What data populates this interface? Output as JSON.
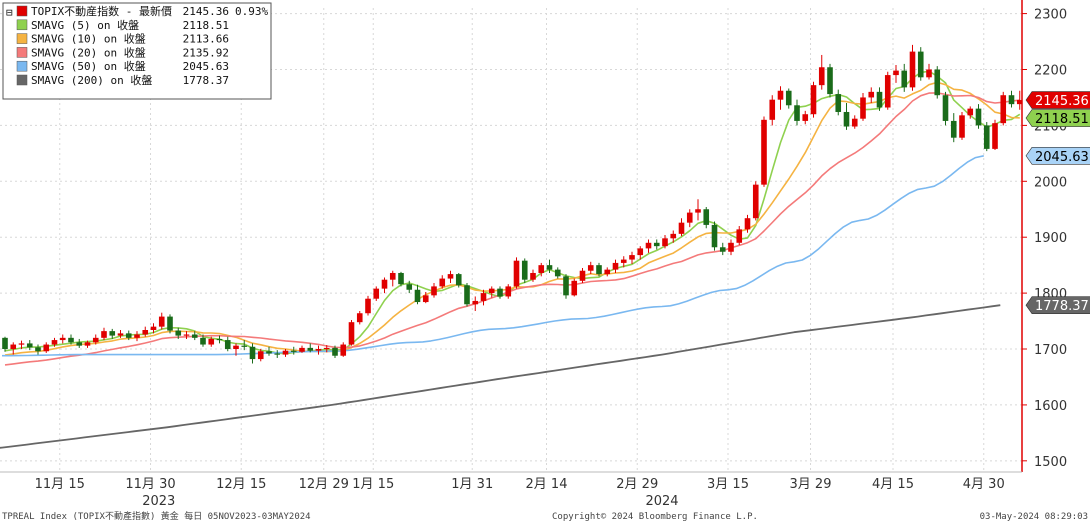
{
  "chart_data": {
    "type": "candlestick",
    "title": "",
    "ylim": [
      1480,
      2310
    ],
    "y_ticks": [
      1500,
      1600,
      1700,
      1800,
      1900,
      2000,
      2100,
      2200,
      2300
    ],
    "x_tick_labels": [
      {
        "label": "11月 15",
        "index": 7
      },
      {
        "label": "11月 30",
        "index": 18
      },
      {
        "label": "12月 15",
        "index": 29
      },
      {
        "label": "12月 29",
        "index": 39
      },
      {
        "label": "1月 15",
        "index": 45
      },
      {
        "label": "1月 31",
        "index": 57
      },
      {
        "label": "2月 14",
        "index": 66
      },
      {
        "label": "2月 29",
        "index": 77
      },
      {
        "label": "3月 15",
        "index": 88
      },
      {
        "label": "3月 29",
        "index": 98
      },
      {
        "label": "4月 15",
        "index": 108
      },
      {
        "label": "4月 30",
        "index": 119
      }
    ],
    "year_labels": [
      {
        "label": "2023",
        "index": 19
      },
      {
        "label": "2024",
        "index": 80
      }
    ],
    "legend": {
      "placement": "top-left",
      "collapse_icon": "⊟",
      "entries": [
        {
          "label": "TOPIX不動産指数 - 最新價",
          "value": "2145.36",
          "extra": "0.93%",
          "color": "#e00000",
          "marker": "box"
        },
        {
          "label": "SMAVG (5)  on 收盤",
          "value": "2118.51",
          "color": "#8fd14f",
          "marker": "box"
        },
        {
          "label": "SMAVG (10)  on 收盤",
          "value": "2113.66",
          "color": "#f5b342",
          "marker": "box"
        },
        {
          "label": "SMAVG (20)  on 收盤",
          "value": "2135.92",
          "color": "#f47a7a",
          "marker": "box"
        },
        {
          "label": "SMAVG (50)  on 收盤",
          "value": "2045.63",
          "color": "#7ab8f0",
          "marker": "box"
        },
        {
          "label": "SMAVG (200)  on 收盤",
          "value": "1778.37",
          "color": "#666666",
          "marker": "box"
        }
      ]
    },
    "price_tags": [
      {
        "value": "2145.36",
        "y": 2145.36,
        "bg": "#e00000",
        "fg": "#ffffff"
      },
      {
        "value": "2118.51",
        "y": 2118.51,
        "bg": "#8fd14f",
        "fg": "#000000"
      },
      {
        "value": "2045.63",
        "y": 2045.63,
        "bg": "#a9d3f7",
        "fg": "#000000"
      },
      {
        "value": "1778.37",
        "y": 1778.37,
        "bg": "#666666",
        "fg": "#ffffff"
      }
    ],
    "candles": [
      [
        1720,
        1722,
        1695,
        1700
      ],
      [
        1700,
        1712,
        1690,
        1708
      ],
      [
        1708,
        1715,
        1700,
        1710
      ],
      [
        1710,
        1716,
        1698,
        1703
      ],
      [
        1703,
        1708,
        1690,
        1696
      ],
      [
        1696,
        1712,
        1693,
        1708
      ],
      [
        1708,
        1720,
        1704,
        1716
      ],
      [
        1716,
        1726,
        1710,
        1720
      ],
      [
        1720,
        1726,
        1708,
        1712
      ],
      [
        1712,
        1718,
        1702,
        1706
      ],
      [
        1706,
        1715,
        1702,
        1712
      ],
      [
        1712,
        1726,
        1708,
        1720
      ],
      [
        1720,
        1738,
        1716,
        1732
      ],
      [
        1732,
        1736,
        1718,
        1724
      ],
      [
        1724,
        1734,
        1720,
        1728
      ],
      [
        1728,
        1733,
        1716,
        1720
      ],
      [
        1720,
        1732,
        1714,
        1726
      ],
      [
        1726,
        1740,
        1722,
        1734
      ],
      [
        1734,
        1746,
        1728,
        1740
      ],
      [
        1740,
        1765,
        1735,
        1758
      ],
      [
        1758,
        1762,
        1728,
        1733
      ],
      [
        1733,
        1738,
        1718,
        1724
      ],
      [
        1724,
        1732,
        1718,
        1726
      ],
      [
        1726,
        1732,
        1716,
        1720
      ],
      [
        1720,
        1726,
        1704,
        1708
      ],
      [
        1708,
        1722,
        1704,
        1718
      ],
      [
        1718,
        1724,
        1710,
        1716
      ],
      [
        1716,
        1722,
        1696,
        1700
      ],
      [
        1700,
        1710,
        1688,
        1706
      ],
      [
        1706,
        1716,
        1698,
        1704
      ],
      [
        1704,
        1710,
        1674,
        1682
      ],
      [
        1682,
        1700,
        1678,
        1696
      ],
      [
        1696,
        1704,
        1688,
        1692
      ],
      [
        1692,
        1698,
        1684,
        1690
      ],
      [
        1690,
        1700,
        1686,
        1697
      ],
      [
        1697,
        1704,
        1690,
        1695
      ],
      [
        1695,
        1706,
        1693,
        1702
      ],
      [
        1702,
        1710,
        1694,
        1697
      ],
      [
        1697,
        1706,
        1690,
        1700
      ],
      [
        1700,
        1707,
        1694,
        1702
      ],
      [
        1702,
        1706,
        1684,
        1688
      ],
      [
        1688,
        1712,
        1686,
        1708
      ],
      [
        1708,
        1752,
        1706,
        1748
      ],
      [
        1748,
        1768,
        1744,
        1764
      ],
      [
        1764,
        1795,
        1760,
        1790
      ],
      [
        1790,
        1812,
        1786,
        1808
      ],
      [
        1808,
        1828,
        1800,
        1824
      ],
      [
        1824,
        1840,
        1812,
        1836
      ],
      [
        1836,
        1838,
        1812,
        1816
      ],
      [
        1816,
        1822,
        1800,
        1806
      ],
      [
        1806,
        1815,
        1780,
        1784
      ],
      [
        1784,
        1802,
        1782,
        1796
      ],
      [
        1796,
        1818,
        1792,
        1812
      ],
      [
        1812,
        1832,
        1808,
        1826
      ],
      [
        1826,
        1840,
        1818,
        1834
      ],
      [
        1834,
        1836,
        1810,
        1814
      ],
      [
        1814,
        1818,
        1776,
        1780
      ],
      [
        1780,
        1794,
        1768,
        1786
      ],
      [
        1786,
        1806,
        1778,
        1800
      ],
      [
        1800,
        1812,
        1792,
        1808
      ],
      [
        1808,
        1812,
        1790,
        1794
      ],
      [
        1794,
        1816,
        1790,
        1812
      ],
      [
        1812,
        1864,
        1808,
        1858
      ],
      [
        1858,
        1862,
        1818,
        1824
      ],
      [
        1824,
        1842,
        1820,
        1836
      ],
      [
        1836,
        1854,
        1830,
        1850
      ],
      [
        1850,
        1860,
        1836,
        1842
      ],
      [
        1842,
        1846,
        1826,
        1830
      ],
      [
        1830,
        1834,
        1790,
        1796
      ],
      [
        1796,
        1826,
        1794,
        1822
      ],
      [
        1822,
        1845,
        1818,
        1840
      ],
      [
        1840,
        1856,
        1834,
        1850
      ],
      [
        1850,
        1854,
        1830,
        1834
      ],
      [
        1834,
        1846,
        1830,
        1842
      ],
      [
        1842,
        1860,
        1836,
        1854
      ],
      [
        1854,
        1866,
        1846,
        1860
      ],
      [
        1860,
        1874,
        1852,
        1868
      ],
      [
        1868,
        1884,
        1860,
        1880
      ],
      [
        1880,
        1896,
        1872,
        1890
      ],
      [
        1890,
        1896,
        1878,
        1884
      ],
      [
        1884,
        1904,
        1880,
        1898
      ],
      [
        1898,
        1912,
        1890,
        1906
      ],
      [
        1906,
        1934,
        1902,
        1926
      ],
      [
        1926,
        1950,
        1918,
        1944
      ],
      [
        1944,
        1968,
        1930,
        1950
      ],
      [
        1950,
        1954,
        1916,
        1922
      ],
      [
        1922,
        1928,
        1876,
        1882
      ],
      [
        1882,
        1890,
        1868,
        1874
      ],
      [
        1874,
        1896,
        1868,
        1890
      ],
      [
        1890,
        1920,
        1886,
        1914
      ],
      [
        1914,
        1940,
        1908,
        1934
      ],
      [
        1934,
        2000,
        1930,
        1994
      ],
      [
        1994,
        2116,
        1990,
        2110
      ],
      [
        2110,
        2154,
        2100,
        2146
      ],
      [
        2146,
        2170,
        2128,
        2162
      ],
      [
        2162,
        2166,
        2130,
        2136
      ],
      [
        2136,
        2146,
        2100,
        2108
      ],
      [
        2108,
        2126,
        2102,
        2120
      ],
      [
        2120,
        2178,
        2114,
        2172
      ],
      [
        2172,
        2226,
        2164,
        2204
      ],
      [
        2204,
        2210,
        2150,
        2156
      ],
      [
        2156,
        2164,
        2118,
        2124
      ],
      [
        2124,
        2140,
        2092,
        2098
      ],
      [
        2098,
        2118,
        2094,
        2112
      ],
      [
        2112,
        2158,
        2108,
        2150
      ],
      [
        2150,
        2168,
        2140,
        2160
      ],
      [
        2160,
        2168,
        2126,
        2132
      ],
      [
        2132,
        2196,
        2128,
        2190
      ],
      [
        2190,
        2208,
        2176,
        2198
      ],
      [
        2198,
        2210,
        2160,
        2168
      ],
      [
        2168,
        2244,
        2162,
        2232
      ],
      [
        2232,
        2240,
        2180,
        2186
      ],
      [
        2186,
        2210,
        2182,
        2200
      ],
      [
        2200,
        2206,
        2148,
        2154
      ],
      [
        2154,
        2160,
        2100,
        2108
      ],
      [
        2108,
        2122,
        2070,
        2078
      ],
      [
        2078,
        2124,
        2074,
        2118
      ],
      [
        2118,
        2134,
        2112,
        2130
      ],
      [
        2130,
        2138,
        2094,
        2100
      ],
      [
        2100,
        2106,
        2054,
        2058
      ],
      [
        2058,
        2110,
        2056,
        2104
      ],
      [
        2104,
        2160,
        2100,
        2154
      ],
      [
        2154,
        2162,
        2132,
        2138
      ],
      [
        2138,
        2162,
        2128,
        2145.36
      ]
    ],
    "sma_series": [
      {
        "period": 5,
        "color": "#8fd14f",
        "width": 1.6
      },
      {
        "period": 10,
        "color": "#f5b342",
        "width": 1.6
      },
      {
        "period": 20,
        "color": "#f47a7a",
        "width": 1.6
      },
      {
        "period": 50,
        "color": "#7ab8f0",
        "width": 1.6,
        "start": 1688,
        "anchors": [
          [
            0,
            1688
          ],
          [
            10,
            1690
          ],
          [
            25,
            1690
          ],
          [
            40,
            1696
          ],
          [
            50,
            1712
          ],
          [
            60,
            1736
          ],
          [
            70,
            1754
          ],
          [
            80,
            1776
          ],
          [
            88,
            1806
          ],
          [
            96,
            1856
          ],
          [
            104,
            1930
          ],
          [
            112,
            1988
          ],
          [
            119,
            2045.63
          ]
        ]
      },
      {
        "period": 200,
        "color": "#666666",
        "width": 1.8,
        "anchors": [
          [
            -2,
            1520
          ],
          [
            20,
            1560
          ],
          [
            40,
            1600
          ],
          [
            60,
            1646
          ],
          [
            80,
            1690
          ],
          [
            96,
            1730
          ],
          [
            110,
            1756
          ],
          [
            121,
            1778.37
          ]
        ]
      }
    ],
    "footer": {
      "left": "TPREAL Index (TOPIX不動產指數) 黃金  每日 05NOV2023-03MAY2024",
      "center": "Copyright© 2024 Bloomberg Finance L.P.",
      "right": "03-May-2024 08:29:03"
    },
    "colors": {
      "up": "#e00000",
      "down": "#1a6b1a",
      "axis": "#e00000",
      "grid": "#d8d8d8"
    }
  }
}
